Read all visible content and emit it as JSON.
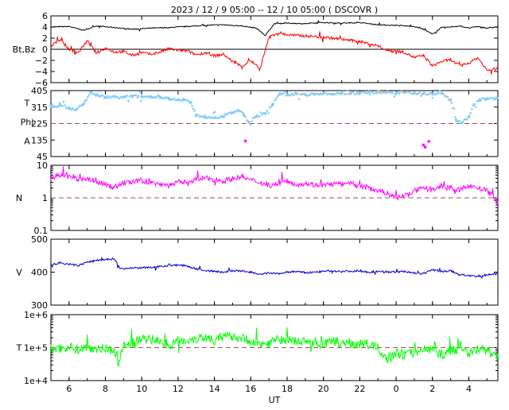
{
  "title": "2023 / 12 /  9   05:00  -- 12 / 10   05:00 ( DSCOVR )",
  "xlabel": "UT",
  "x_ticks": [
    "6",
    "8",
    "10",
    "12",
    "14",
    "16",
    "18",
    "20",
    "22",
    "0",
    "2",
    "4"
  ],
  "x_tick_hours": [
    6,
    8,
    10,
    12,
    14,
    16,
    18,
    20,
    22,
    24,
    26,
    28
  ],
  "x_range_hours": [
    5,
    29.6
  ],
  "chart_data": [
    {
      "type": "line",
      "panel": "magnetic-field",
      "ylabel": "Bt,Bz",
      "ylim": [
        -6,
        6
      ],
      "y_ticks": [
        "6",
        "4",
        "2",
        "0",
        "−2",
        "−4",
        "−6"
      ],
      "y_tick_values": [
        6,
        4,
        2,
        0,
        -2,
        -4,
        -6
      ],
      "reference_line": 0,
      "series": [
        {
          "name": "Bt",
          "color": "#000000",
          "x": [
            5,
            6,
            6.8,
            7.5,
            8.5,
            9.5,
            10.5,
            11.5,
            12.5,
            13.5,
            14.5,
            15.5,
            16.3,
            16.8,
            17.3,
            18,
            19,
            20,
            21,
            22,
            23,
            24,
            25,
            25.5,
            26,
            26.5,
            27,
            27.5,
            28,
            28.5,
            29,
            29.5
          ],
          "values": [
            4.0,
            4.1,
            3.4,
            4.2,
            3.9,
            3.6,
            3.8,
            3.9,
            4.1,
            4.3,
            4.4,
            4.2,
            3.8,
            2.5,
            4.6,
            4.7,
            4.6,
            4.8,
            4.7,
            4.8,
            4.4,
            4.3,
            4.1,
            3.6,
            2.7,
            3.9,
            4.0,
            4.2,
            3.8,
            4.1,
            3.8,
            4.0
          ]
        },
        {
          "name": "Bz",
          "color": "#ff0000",
          "x": [
            5,
            5.5,
            6,
            6.5,
            7,
            7.5,
            8,
            8.5,
            9,
            9.5,
            10,
            10.5,
            11,
            11.5,
            12,
            12.5,
            13,
            13.5,
            14,
            14.5,
            15,
            15.5,
            16,
            16.5,
            17,
            17.5,
            18,
            19,
            20,
            21,
            22,
            23,
            23.5,
            24,
            24.5,
            25,
            25.5,
            26,
            26.5,
            27,
            27.5,
            28,
            28.5,
            29,
            29.5
          ],
          "values": [
            0.5,
            1.8,
            0.0,
            -0.6,
            1.5,
            -0.7,
            0.2,
            -0.5,
            -0.4,
            -1.1,
            -0.6,
            -0.9,
            -0.5,
            0.1,
            -0.2,
            -0.3,
            -1.0,
            -0.6,
            -1.2,
            -0.9,
            -2.2,
            -3.1,
            -2.0,
            -3.6,
            2.1,
            3.0,
            2.6,
            2.4,
            2.2,
            1.8,
            1.4,
            0.6,
            -0.2,
            -0.3,
            -0.6,
            -1.5,
            -1.1,
            -3.0,
            -2.2,
            -1.9,
            -3.0,
            -2.5,
            -1.5,
            -3.8,
            -3.5
          ]
        }
      ]
    },
    {
      "type": "scatter",
      "panel": "angle",
      "ylabel_lines": [
        "T",
        "Phi",
        "A"
      ],
      "ylim": [
        45,
        405
      ],
      "y_ticks": [
        "405",
        "315",
        "225",
        "135",
        "45"
      ],
      "y_tick_values": [
        405,
        315,
        225,
        135,
        45
      ],
      "reference_line": 225,
      "series": [
        {
          "name": "Phi",
          "color": "#87cefa",
          "x": [
            5,
            5.5,
            6,
            6.4,
            6.8,
            7.2,
            7.6,
            8,
            8.5,
            9,
            9.5,
            10,
            10.5,
            11,
            11.5,
            12,
            12.3,
            12.7,
            13,
            13.5,
            14,
            14.5,
            15,
            15.3,
            15.6,
            15.9,
            16.3,
            16.8,
            17.2,
            17.6,
            18,
            18.5,
            19,
            19.5,
            20,
            20.5,
            21,
            21.5,
            22,
            22.5,
            23,
            23.5,
            24,
            24.5,
            25,
            25.5,
            26,
            26.5,
            27,
            27.3,
            27.6,
            28,
            28.3,
            28.6,
            29,
            29.5
          ],
          "values": [
            318,
            325,
            310,
            302,
            330,
            395,
            378,
            370,
            372,
            368,
            375,
            373,
            372,
            370,
            362,
            355,
            358,
            340,
            268,
            262,
            258,
            265,
            285,
            298,
            275,
            232,
            262,
            280,
            330,
            385,
            382,
            388,
            383,
            386,
            390,
            386,
            390,
            393,
            391,
            395,
            397,
            396,
            392,
            395,
            394,
            389,
            386,
            392,
            355,
            245,
            228,
            262,
            330,
            355,
            360,
            362
          ]
        },
        {
          "name": "A",
          "color": "#ff00ff",
          "x": [
            15.7,
            25.5,
            25.6,
            25.8
          ],
          "values": [
            130,
            108,
            96,
            128
          ]
        }
      ]
    },
    {
      "type": "line",
      "panel": "density",
      "ylabel": "N",
      "y_scale": "log",
      "ylim": [
        0.1,
        10
      ],
      "y_ticks": [
        "10",
        "1",
        "0.1"
      ],
      "y_tick_values": [
        10,
        1,
        0.1
      ],
      "reference_line": 1,
      "series": [
        {
          "name": "N",
          "color": "#ff00ff",
          "x": [
            5,
            5.5,
            6,
            6.5,
            7,
            7.5,
            8,
            8.5,
            9,
            9.5,
            10,
            10.5,
            11,
            11.5,
            12,
            12.5,
            13,
            13.5,
            14,
            14.5,
            15,
            15.5,
            16,
            16.5,
            17,
            17.5,
            18,
            18.5,
            19,
            19.5,
            20,
            20.5,
            21,
            21.5,
            22,
            22.5,
            23,
            23.5,
            24,
            24.5,
            25,
            25.5,
            26,
            26.5,
            27,
            27.5,
            28,
            28.5,
            29,
            29.5
          ],
          "values": [
            4.2,
            4.8,
            4.5,
            3.6,
            3.9,
            3.2,
            2.6,
            2.1,
            2.9,
            3.0,
            3.4,
            2.9,
            2.7,
            2.4,
            3.0,
            3.2,
            3.6,
            4.0,
            3.7,
            3.3,
            3.9,
            4.4,
            3.5,
            3.0,
            2.4,
            2.7,
            3.2,
            2.6,
            2.8,
            2.5,
            2.4,
            2.7,
            2.6,
            2.7,
            2.3,
            2.0,
            1.7,
            1.4,
            1.0,
            1.2,
            1.6,
            1.9,
            1.8,
            2.3,
            2.0,
            1.7,
            2.4,
            2.0,
            1.6,
            0.8
          ]
        }
      ]
    },
    {
      "type": "line",
      "panel": "velocity",
      "ylabel": "V",
      "ylim": [
        300,
        500
      ],
      "y_ticks": [
        "500",
        "400",
        "300"
      ],
      "y_tick_values": [
        500,
        400,
        300
      ],
      "series": [
        {
          "name": "V",
          "color": "#0000cd",
          "x": [
            5,
            5.5,
            6,
            6.5,
            7,
            7.5,
            8,
            8.5,
            8.8,
            9,
            9.5,
            10,
            10.5,
            11,
            11.5,
            12,
            12.5,
            13,
            13.5,
            14,
            14.5,
            15,
            15.5,
            16,
            16.5,
            17,
            17.5,
            18,
            18.5,
            19,
            19.5,
            20,
            20.5,
            21,
            21.5,
            22,
            22.5,
            23,
            23.5,
            24,
            24.5,
            25,
            25.5,
            26,
            26.5,
            27,
            27.5,
            28,
            28.5,
            29,
            29.5
          ],
          "values": [
            422,
            428,
            424,
            420,
            430,
            436,
            438,
            440,
            412,
            410,
            412,
            414,
            413,
            418,
            420,
            422,
            418,
            410,
            405,
            402,
            400,
            404,
            403,
            400,
            392,
            398,
            395,
            400,
            402,
            398,
            400,
            402,
            404,
            402,
            403,
            404,
            400,
            402,
            401,
            400,
            402,
            398,
            395,
            408,
            402,
            404,
            392,
            390,
            385,
            392,
            395
          ]
        }
      ]
    },
    {
      "type": "line",
      "panel": "temperature",
      "ylabel": "T",
      "y_scale": "log",
      "ylim": [
        10000,
        1000000
      ],
      "y_ticks": [
        "1e+6",
        "1e+5",
        "1e+4"
      ],
      "y_tick_values": [
        1000000,
        100000,
        10000
      ],
      "reference_line": 100000,
      "series": [
        {
          "name": "T",
          "color": "#00ff00",
          "x": [
            5,
            5.5,
            6,
            6.5,
            7,
            7.5,
            8,
            8.5,
            8.7,
            9,
            9.5,
            10,
            10.5,
            11,
            11.5,
            12,
            12.5,
            13,
            13.5,
            14,
            14.5,
            15,
            15.5,
            16,
            16.5,
            17,
            17.5,
            18,
            18.5,
            19,
            19.5,
            20,
            20.5,
            21,
            21.5,
            22,
            22.5,
            23,
            23.5,
            24,
            24.5,
            25,
            25.5,
            26,
            26.5,
            27,
            27.5,
            28,
            28.5,
            29,
            29.5
          ],
          "values": [
            90000,
            95000,
            105000,
            88000,
            100000,
            98000,
            92000,
            85000,
            25000,
            110000,
            140000,
            170000,
            180000,
            160000,
            120000,
            150000,
            170000,
            190000,
            210000,
            180000,
            200000,
            230000,
            190000,
            160000,
            120000,
            140000,
            180000,
            170000,
            150000,
            160000,
            140000,
            130000,
            150000,
            140000,
            135000,
            130000,
            125000,
            95000,
            45000,
            70000,
            60000,
            75000,
            90000,
            85000,
            60000,
            80000,
            95000,
            70000,
            90000,
            85000,
            50000
          ]
        }
      ]
    }
  ]
}
